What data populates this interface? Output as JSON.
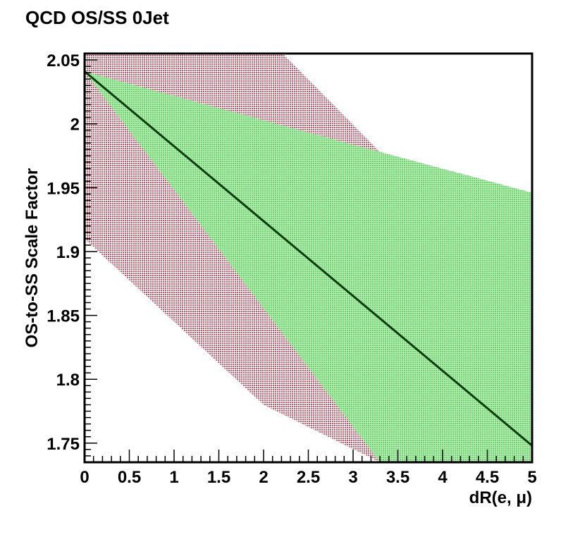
{
  "chart_data": {
    "type": "line",
    "title": "QCD OS/SS 0Jet",
    "xlabel": "dR(e,  μ)",
    "ylabel": "OS-to-SS Scale Factor",
    "xlim": [
      0,
      5
    ],
    "ylim": [
      1.735,
      2.055
    ],
    "x_ticks": [
      "0",
      "0.5",
      "1",
      "1.5",
      "2",
      "2.5",
      "3",
      "3.5",
      "4",
      "4.5",
      "5"
    ],
    "y_ticks": [
      "1.75",
      "1.8",
      "1.85",
      "1.9",
      "1.95",
      "2",
      "2.05"
    ],
    "grid": false,
    "colors": {
      "central_line": "#0b3d0b",
      "green_band": "#8fe08f",
      "red_band": "#c0707a"
    },
    "series": [
      {
        "kind": "line",
        "x": [
          0,
          5
        ],
        "y": [
          2.041,
          1.748
        ]
      },
      {
        "kind": "band",
        "x": [
          0,
          3.3,
          5
        ],
        "upper": [
          2.041,
          1.978,
          1.946
        ],
        "lower": [
          2.041,
          1.735,
          1.735
        ]
      },
      {
        "kind": "band",
        "x": [
          0,
          2.0,
          3.3,
          5
        ],
        "upper": [
          2.07,
          2.07,
          1.978,
          1.946
        ],
        "lower": [
          1.91,
          1.78,
          1.735,
          1.735
        ]
      }
    ]
  }
}
